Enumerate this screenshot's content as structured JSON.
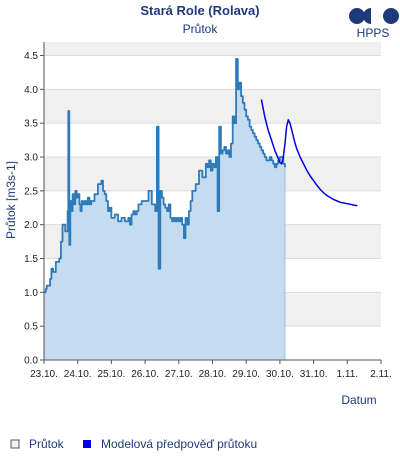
{
  "chart_data": {
    "type": "area",
    "title": "Stará Role (Rolava)",
    "subtitle": "Průtok",
    "logo_text": "HPPS",
    "ylabel": "Průtok [m3s-1]",
    "xlabel": "Datum",
    "ylim": [
      0.0,
      4.7
    ],
    "yticks": [
      "0.0",
      "0.5",
      "1.0",
      "1.5",
      "2.0",
      "2.5",
      "3.0",
      "3.5",
      "4.0",
      "4.5"
    ],
    "xlim": [
      0,
      10
    ],
    "xticks": [
      "23.10.",
      "24.10.",
      "25.10.",
      "26.10.",
      "27.10.",
      "28.10.",
      "29.10.",
      "30.10.",
      "31.10.",
      "1.11.",
      "2.11."
    ],
    "grid": true,
    "legend_position": "bottom",
    "colors": {
      "title": "#1f3a7a",
      "observed_line": "#2f7ab9",
      "observed_fill": "#c5dcf0",
      "forecast_line": "#0000e6",
      "band": "#f0f0f0",
      "axis": "#555555"
    },
    "series": [
      {
        "name": "Průtok",
        "kind": "observed",
        "x": [
          0.0,
          0.05,
          0.08,
          0.18,
          0.22,
          0.27,
          0.35,
          0.45,
          0.5,
          0.55,
          0.63,
          0.7,
          0.72,
          0.75,
          0.78,
          0.82,
          0.85,
          0.9,
          0.93,
          0.97,
          1.0,
          1.05,
          1.08,
          1.12,
          1.15,
          1.2,
          1.25,
          1.3,
          1.35,
          1.4,
          1.5,
          1.6,
          1.7,
          1.75,
          1.8,
          1.85,
          1.9,
          1.95,
          2.0,
          2.1,
          2.2,
          2.3,
          2.4,
          2.5,
          2.55,
          2.6,
          2.65,
          2.7,
          2.75,
          2.8,
          2.9,
          3.0,
          3.1,
          3.2,
          3.3,
          3.35,
          3.4,
          3.45,
          3.5,
          3.55,
          3.6,
          3.65,
          3.7,
          3.75,
          3.8,
          3.85,
          3.9,
          3.95,
          4.0,
          4.05,
          4.1,
          4.15,
          4.2,
          4.25,
          4.3,
          4.35,
          4.4,
          4.5,
          4.6,
          4.7,
          4.8,
          4.85,
          4.9,
          4.95,
          5.0,
          5.05,
          5.1,
          5.15,
          5.2,
          5.25,
          5.3,
          5.35,
          5.4,
          5.45,
          5.5,
          5.55,
          5.6,
          5.65,
          5.7,
          5.75,
          5.8,
          5.85,
          5.9,
          5.95,
          6.0,
          6.05,
          6.1,
          6.15,
          6.2,
          6.25,
          6.3,
          6.35,
          6.4,
          6.45,
          6.5,
          6.55,
          6.6,
          6.65,
          6.7,
          6.75,
          6.8,
          6.85,
          6.9,
          6.95,
          7.0,
          7.05,
          7.1,
          7.15
        ],
        "y": [
          1.0,
          1.05,
          1.1,
          1.2,
          1.35,
          1.3,
          1.45,
          1.5,
          1.75,
          2.0,
          1.9,
          2.2,
          3.68,
          1.7,
          2.35,
          2.2,
          2.45,
          2.3,
          2.5,
          2.4,
          2.45,
          2.3,
          2.2,
          2.35,
          2.3,
          2.35,
          2.3,
          2.4,
          2.3,
          2.35,
          2.45,
          2.6,
          2.65,
          2.5,
          2.45,
          2.35,
          2.2,
          2.25,
          2.1,
          2.15,
          2.05,
          2.1,
          2.05,
          2.1,
          2.0,
          2.15,
          2.2,
          2.15,
          2.2,
          2.3,
          2.35,
          2.35,
          2.5,
          2.3,
          2.2,
          3.45,
          1.35,
          2.5,
          2.4,
          2.3,
          2.25,
          2.2,
          2.3,
          2.1,
          2.05,
          2.1,
          2.05,
          2.1,
          2.05,
          2.1,
          2.0,
          1.8,
          2.1,
          2.0,
          2.2,
          2.35,
          2.5,
          2.6,
          2.8,
          2.7,
          2.9,
          2.85,
          2.95,
          2.8,
          2.9,
          2.85,
          3.0,
          2.2,
          3.45,
          3.05,
          3.1,
          3.15,
          3.05,
          3.1,
          3.0,
          3.2,
          3.6,
          3.5,
          4.45,
          4.0,
          4.1,
          3.9,
          3.8,
          3.7,
          3.6,
          3.55,
          3.45,
          3.4,
          3.35,
          3.3,
          3.25,
          3.2,
          3.15,
          3.1,
          3.05,
          3.0,
          2.95,
          2.95,
          3.0,
          2.95,
          2.9,
          2.85,
          2.9,
          2.95,
          3.0,
          3.0,
          2.9,
          2.85
        ],
        "y_note": "approximate readings"
      },
      {
        "name": "Modelová předpověď průtoku",
        "kind": "forecast",
        "x": [
          6.45,
          6.55,
          6.65,
          6.75,
          6.85,
          6.95,
          7.0,
          7.05,
          7.1,
          7.15,
          7.2,
          7.25,
          7.3,
          7.35,
          7.4,
          7.45,
          7.5,
          7.6,
          7.7,
          7.8,
          7.9,
          8.0,
          8.1,
          8.2,
          8.3,
          8.4,
          8.5,
          8.6,
          8.7,
          8.8,
          8.9,
          9.0,
          9.1,
          9.2,
          9.3
        ],
        "y": [
          3.85,
          3.6,
          3.4,
          3.25,
          3.1,
          2.98,
          2.92,
          2.9,
          3.0,
          3.2,
          3.45,
          3.55,
          3.5,
          3.4,
          3.3,
          3.2,
          3.12,
          3.0,
          2.9,
          2.8,
          2.72,
          2.65,
          2.58,
          2.52,
          2.47,
          2.43,
          2.4,
          2.37,
          2.35,
          2.33,
          2.32,
          2.31,
          2.3,
          2.29,
          2.28
        ]
      }
    ]
  }
}
